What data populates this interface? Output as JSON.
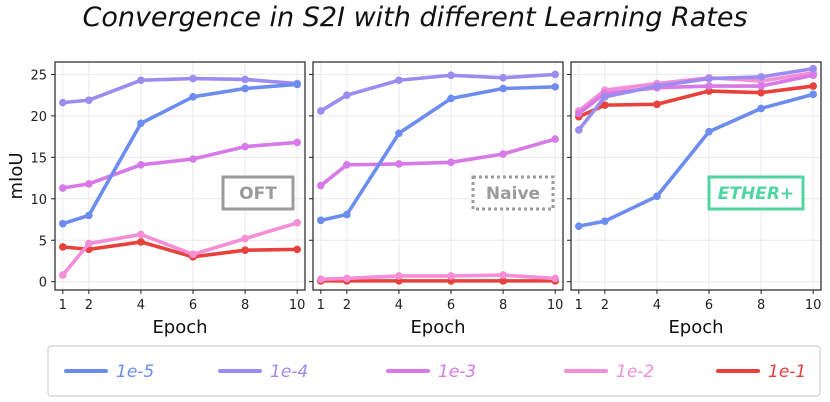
{
  "chart_data": {
    "type": "line",
    "title": "Convergence in S2I with different Learning Rates",
    "xlabel": "Epoch",
    "ylabel": "mIoU",
    "x": [
      1,
      2,
      4,
      6,
      8,
      10
    ],
    "xticks": [
      "1",
      "2",
      "4",
      "6",
      "8",
      "10"
    ],
    "yticks": [
      "0",
      "5",
      "10",
      "15",
      "20",
      "25"
    ],
    "ylim": [
      -1,
      26.5
    ],
    "xlim": [
      0.7,
      10.3
    ],
    "grid": true,
    "legend": [
      {
        "label": "1e-5",
        "color": "#6c8cf0"
      },
      {
        "label": "1e-4",
        "color": "#9d8cf0"
      },
      {
        "label": "1e-3",
        "color": "#d77ae8"
      },
      {
        "label": "1e-2",
        "color": "#f48ed6"
      },
      {
        "label": "1e-1",
        "color": "#e8413b"
      }
    ],
    "panels": [
      {
        "method": "OFT",
        "tag_color": "#9b9b9b",
        "tag_style": "solid",
        "series": [
          {
            "name": "1e-5",
            "values": [
              7.0,
              8.0,
              19.1,
              22.3,
              23.3,
              23.8
            ]
          },
          {
            "name": "1e-4",
            "values": [
              21.6,
              21.9,
              24.3,
              24.5,
              24.4,
              23.9
            ]
          },
          {
            "name": "1e-3",
            "values": [
              11.3,
              11.8,
              14.1,
              14.8,
              16.3,
              16.8
            ]
          },
          {
            "name": "1e-2",
            "values": [
              0.8,
              4.6,
              5.7,
              3.3,
              5.2,
              7.1
            ]
          },
          {
            "name": "1e-1",
            "values": [
              4.2,
              3.9,
              4.8,
              3.0,
              3.8,
              3.9
            ]
          }
        ]
      },
      {
        "method": "Naive",
        "tag_color": "#9b9b9b",
        "tag_style": "dotted",
        "series": [
          {
            "name": "1e-5",
            "values": [
              7.4,
              8.1,
              17.9,
              22.1,
              23.3,
              23.5
            ]
          },
          {
            "name": "1e-4",
            "values": [
              20.6,
              22.5,
              24.3,
              24.9,
              24.6,
              25.0
            ]
          },
          {
            "name": "1e-3",
            "values": [
              11.6,
              14.1,
              14.2,
              14.4,
              15.4,
              17.2
            ]
          },
          {
            "name": "1e-2",
            "values": [
              0.3,
              0.4,
              0.7,
              0.7,
              0.8,
              0.4
            ]
          },
          {
            "name": "1e-1",
            "values": [
              0.1,
              0.1,
              0.1,
              0.1,
              0.1,
              0.1
            ]
          }
        ]
      },
      {
        "method": "ETHER+",
        "tag_color": "#4fd6a0",
        "tag_style": "solid",
        "series": [
          {
            "name": "1e-5",
            "values": [
              6.7,
              7.3,
              10.3,
              18.1,
              20.9,
              22.6
            ]
          },
          {
            "name": "1e-4",
            "values": [
              18.3,
              22.3,
              23.6,
              24.5,
              24.7,
              25.7
            ]
          },
          {
            "name": "1e-3",
            "values": [
              20.3,
              22.7,
              23.4,
              23.6,
              23.6,
              24.9
            ]
          },
          {
            "name": "1e-2",
            "values": [
              20.6,
              23.1,
              23.9,
              24.6,
              24.2,
              25.2
            ]
          },
          {
            "name": "1e-1",
            "values": [
              19.9,
              21.3,
              21.4,
              23.0,
              22.8,
              23.6
            ]
          }
        ]
      }
    ]
  }
}
